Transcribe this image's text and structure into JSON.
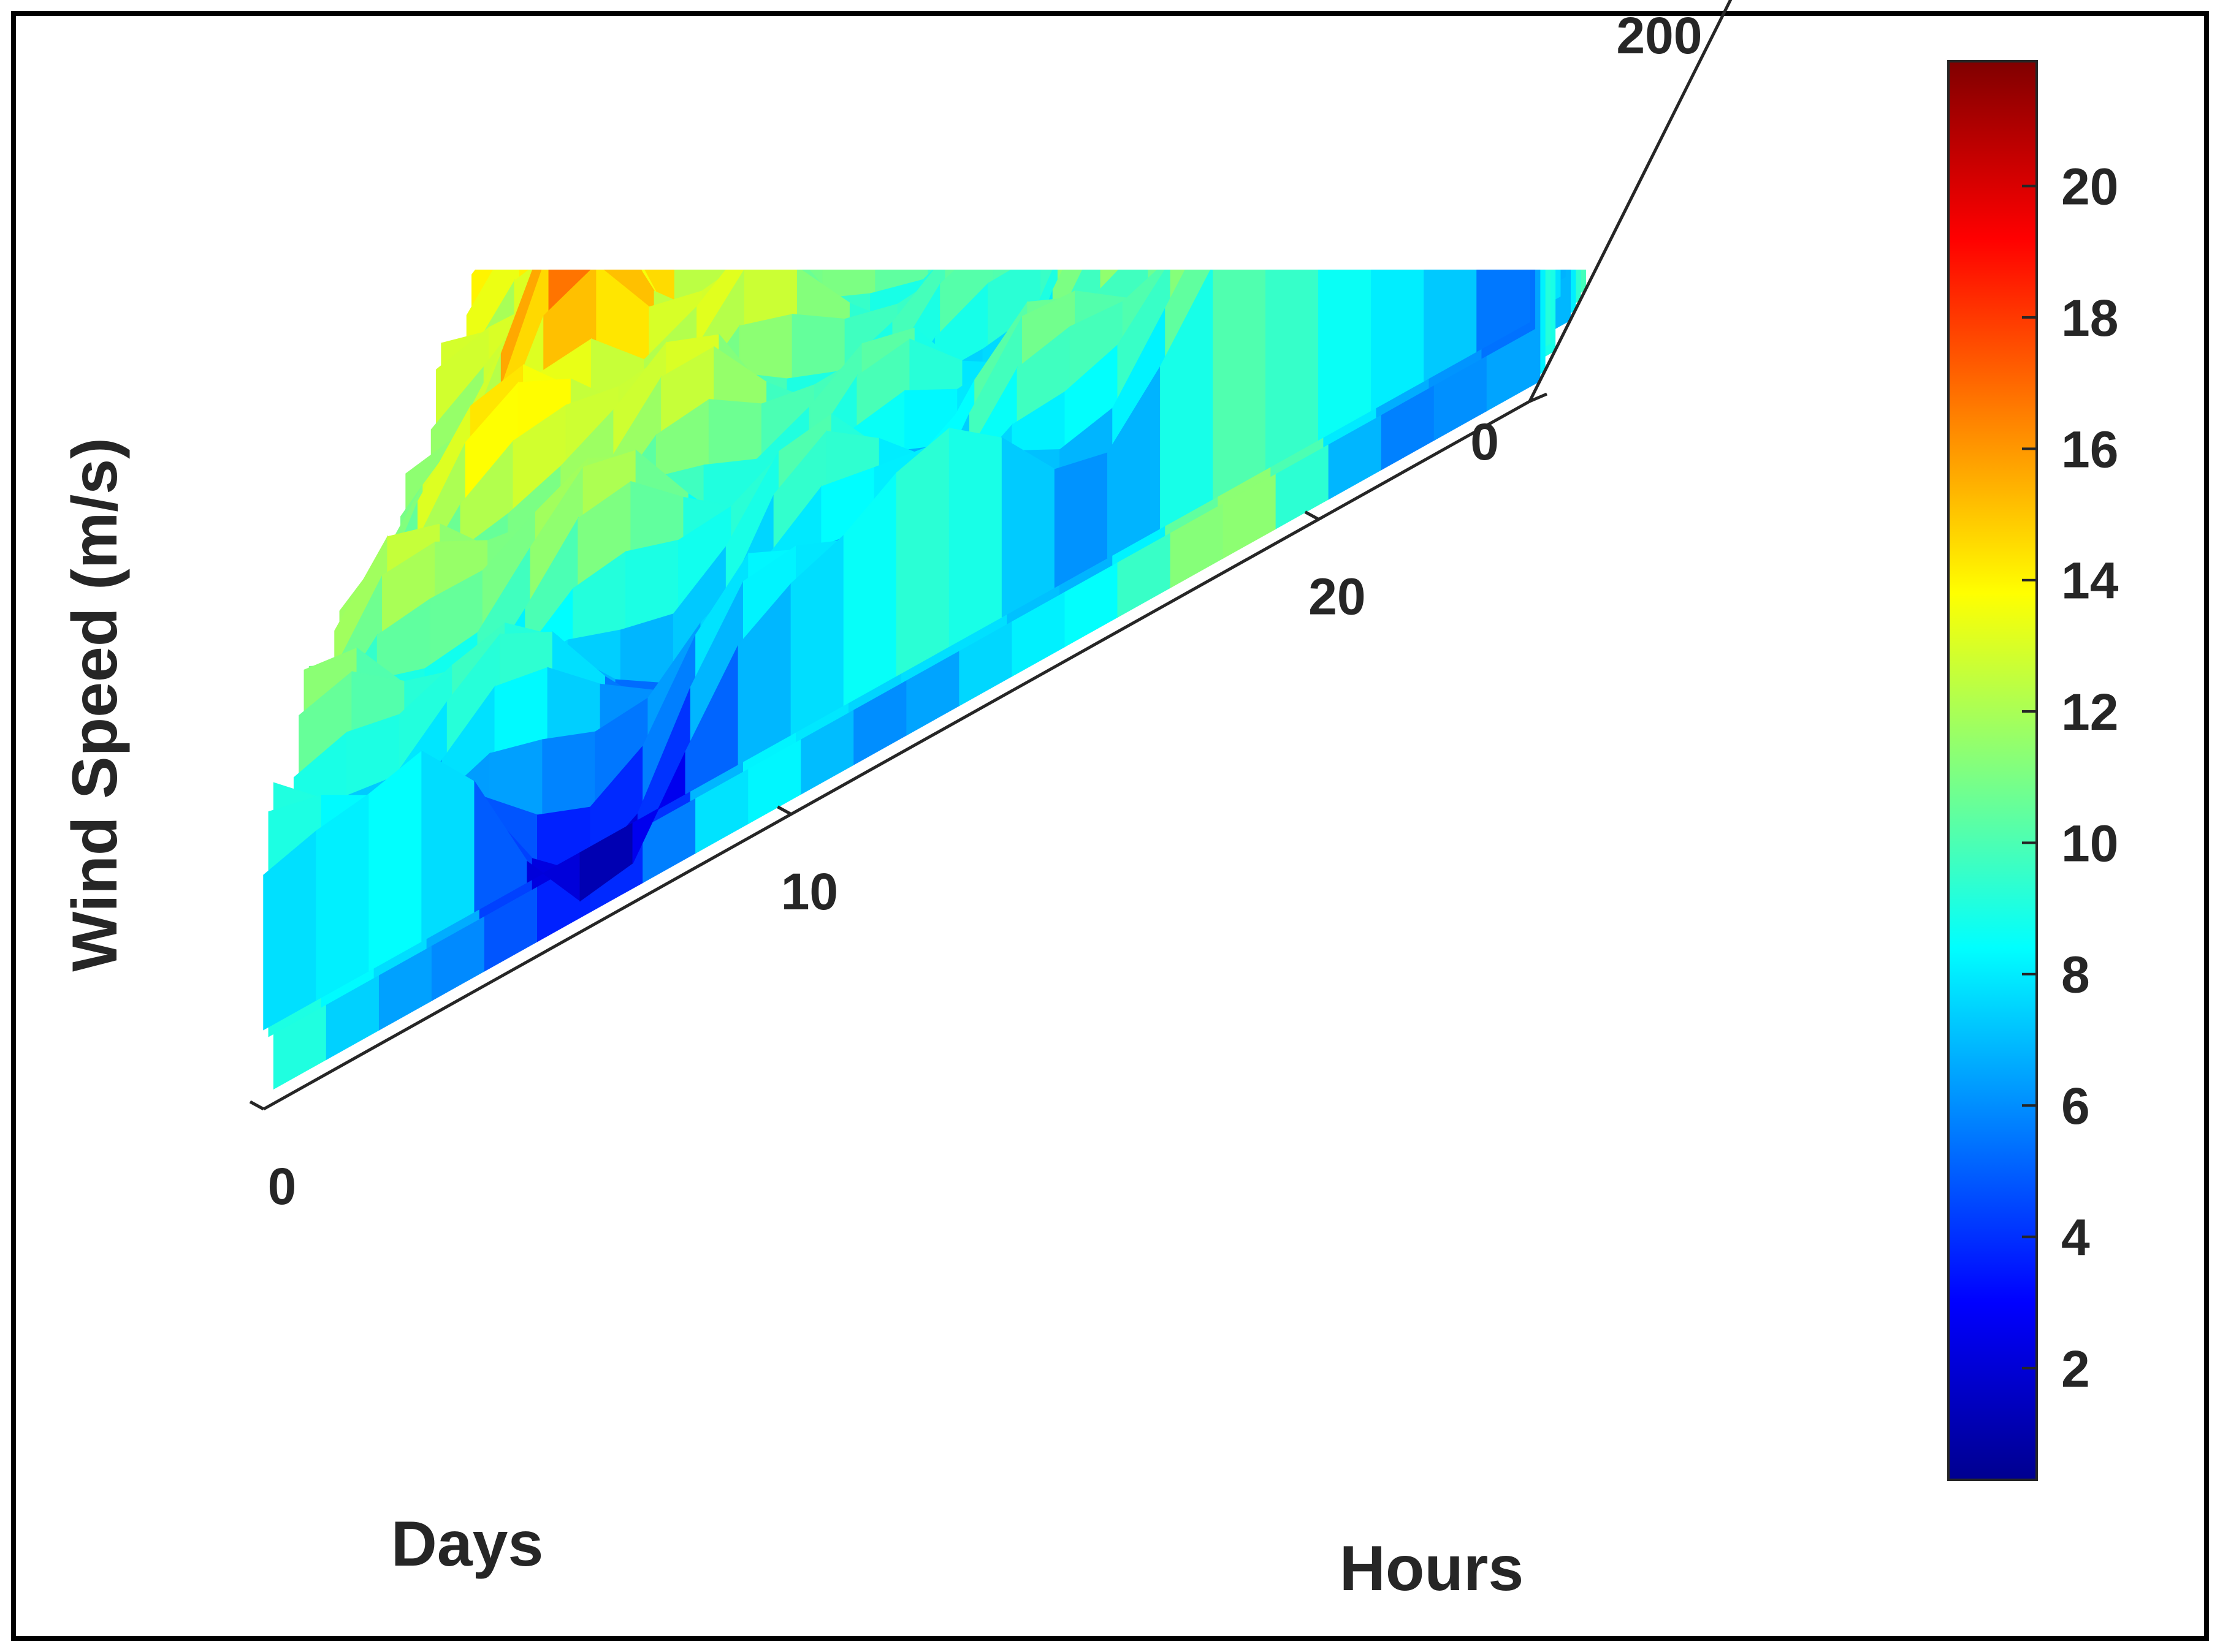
{
  "chart_data": {
    "type": "surface",
    "title": "",
    "xlabel": "Hours",
    "ylabel": "Days",
    "zlabel": "Wind Speed (m/s)",
    "xlim": [
      0,
      24
    ],
    "ylim": [
      0,
      365
    ],
    "zlim": [
      0,
      25
    ],
    "x_ticks": [
      "0",
      "10",
      "20"
    ],
    "y_ticks": [
      "0",
      "200",
      "400"
    ],
    "z_ticks": [
      "0",
      "5",
      "10",
      "15",
      "20",
      "25"
    ],
    "colorbar": {
      "colormap": "jet",
      "range": [
        0.3,
        21.9
      ],
      "ticks": [
        "2",
        "4",
        "6",
        "8",
        "10",
        "12",
        "14",
        "16",
        "18",
        "20"
      ]
    },
    "grid": false,
    "visible_ridges": [
      {
        "day": 0,
        "hourly_speed": [
          7.5,
          8.0,
          7.2,
          6.5,
          5.2,
          4.0,
          3.5,
          3.2,
          4.0,
          5.5,
          6.8,
          7.5,
          7.8,
          8.0,
          8.2,
          8.4,
          8.5,
          8.6,
          8.9,
          8.6,
          8.2,
          7.8,
          7.0,
          6.2,
          5.6
        ]
      },
      {
        "day": 60,
        "hourly_speed": [
          9.5,
          10.0,
          10.2,
          10.3,
          10.4,
          10.3,
          10.2,
          10.0,
          9.5,
          9.0,
          8.2,
          7.5,
          7.0,
          7.5,
          8.8,
          10.0,
          11.5,
          12.8,
          13.0,
          12.0,
          11.0,
          9.8,
          9.2,
          8.8,
          8.5
        ]
      },
      {
        "day": 150,
        "hourly_speed": [
          10.0,
          11.5,
          13.0,
          16.0,
          17.0,
          14.0,
          12.5,
          12.0,
          10.5,
          9.8,
          9.5,
          9.2,
          9.6,
          10.2,
          10.5,
          10.2,
          9.6,
          9.2,
          9.6,
          10.8,
          11.8,
          12.2,
          12.0,
          11.2,
          10.2
        ]
      },
      {
        "day": 260,
        "hourly_speed": [
          12.5,
          12.8,
          12.2,
          12.8,
          13.2,
          12.5,
          11.5,
          10.8,
          10.0,
          10.5,
          12.5,
          15.5,
          18.0,
          20.5,
          22.0,
          21.0,
          19.5,
          18.0,
          16.8,
          15.2,
          14.5,
          14.0,
          13.6,
          13.0,
          12.5
        ]
      },
      {
        "day": 350,
        "hourly_speed": [
          10.5,
          10.0,
          10.2,
          10.4,
          10.6,
          10.8,
          10.5,
          10.0,
          9.6,
          9.3,
          9.0,
          8.8,
          9.0,
          9.3,
          9.8,
          10.2,
          10.8,
          11.8,
          12.5,
          12.0,
          11.2,
          10.6,
          10.5,
          10.4,
          10.3
        ]
      }
    ]
  }
}
